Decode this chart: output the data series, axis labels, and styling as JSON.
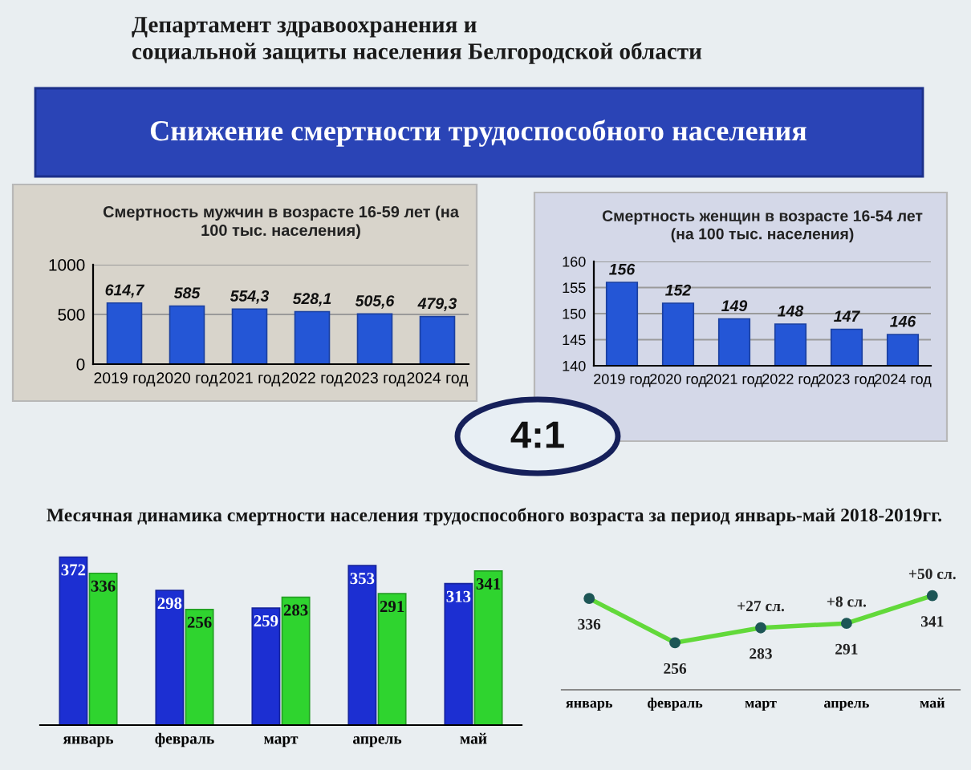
{
  "chart_data": [
    {
      "type": "other",
      "subtitle": "Департамент здравоохранения и\nсоциальной защиты населения Белгородской области",
      "title": "Снижение смертности трудоспособного населения"
    },
    {
      "type": "bar",
      "title": "Смертность мужчин в возрасте 16-59 лет (на\n100 тыс. населения)",
      "categories": [
        "2019 год",
        "2020 год",
        "2021 год",
        "2022 год",
        "2023 год",
        "2024 год"
      ],
      "values": [
        614.7,
        585,
        554.3,
        528.1,
        505.6,
        479.3
      ],
      "value_labels": [
        "614,7",
        "585",
        "554,3",
        "528,1",
        "505,6",
        "479,3"
      ],
      "color": "#2456d6",
      "ylim": [
        0,
        1000
      ],
      "yticks": [
        0,
        500,
        1000
      ],
      "grid": "y"
    },
    {
      "type": "bar",
      "title": "Смертность женщин в возрасте 16-54 лет\n(на 100 тыс. населения)",
      "categories": [
        "2019 год",
        "2020 год",
        "2021 год",
        "2022 год",
        "2023 год",
        "2024 год"
      ],
      "values": [
        156,
        152,
        149,
        148,
        147,
        146
      ],
      "data_labels": true,
      "color": "#2456d6",
      "ylim": [
        140,
        160
      ],
      "yticks": [
        140,
        145,
        150,
        155,
        160
      ],
      "grid": "y"
    },
    {
      "type": "other",
      "annotations": [
        "4:1"
      ]
    },
    {
      "type": "bar",
      "title": "Месячная динамика смертности населения трудоспособного возраста за период январь-май 2018-2019гг.",
      "categories": [
        "январь",
        "февраль",
        "март",
        "апрель",
        "май"
      ],
      "series": [
        {
          "color": "#1c2fd2",
          "values": [
            372,
            298,
            259,
            353,
            313
          ]
        },
        {
          "color": "#2fd42f",
          "values": [
            336,
            256,
            283,
            291,
            341
          ]
        }
      ],
      "data_labels": true,
      "tick_labels": "x"
    },
    {
      "type": "line",
      "categories": [
        "январь",
        "февраль",
        "март",
        "апрель",
        "май"
      ],
      "series": [
        {
          "color": "#62d93a",
          "values": [
            336,
            256,
            283,
            291,
            341
          ]
        }
      ],
      "marker": "circle",
      "data_labels": true,
      "tick_labels": "x",
      "annotations": [
        {
          "text": "+27 сл.",
          "x": "март",
          "y": 283
        },
        {
          "text": "+8 сл.",
          "x": "апрель",
          "y": 291
        },
        {
          "text": "+50 сл.",
          "x": "май",
          "y": 341
        }
      ]
    }
  ]
}
